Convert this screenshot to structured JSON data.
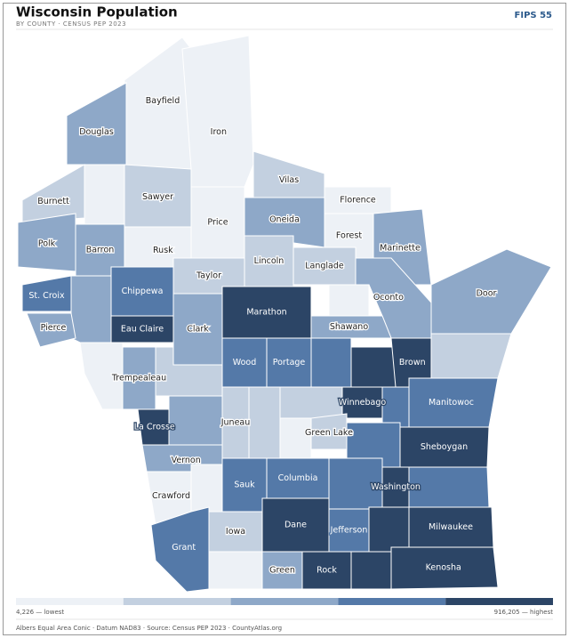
{
  "header": {
    "title": "Wisconsin Population",
    "subtitle": "BY COUNTY · CENSUS PEP 2023",
    "badge": "FIPS 55"
  },
  "map": {
    "counties": [
      {
        "name": "Bayfield",
        "color": "#edf1f6"
      },
      {
        "name": "Douglas",
        "color": "#8ea8c8"
      },
      {
        "name": "Iron",
        "color": "#edf1f6"
      },
      {
        "name": "Vilas",
        "color": "#c3d0e0"
      },
      {
        "name": "Florence",
        "color": "#edf1f6"
      },
      {
        "name": "Forest",
        "color": "#edf1f6"
      },
      {
        "name": "Marinette",
        "color": "#8ea8c8"
      },
      {
        "name": "Door",
        "color": "#8ea8c8"
      },
      {
        "name": "Burnett",
        "color": "#c3d0e0"
      },
      {
        "name": null,
        "color": "#edf1f6"
      },
      {
        "name": "Sawyer",
        "color": "#c3d0e0"
      },
      {
        "name": "Price",
        "color": "#edf1f6"
      },
      {
        "name": "Oneida",
        "color": "#8ea8c8"
      },
      {
        "name": "Polk",
        "color": "#8ea8c8"
      },
      {
        "name": "Barron",
        "color": "#8ea8c8"
      },
      {
        "name": "Rusk",
        "color": "#edf1f6"
      },
      {
        "name": "Taylor",
        "color": "#c3d0e0"
      },
      {
        "name": "Lincoln",
        "color": "#c3d0e0"
      },
      {
        "name": "Langlade",
        "color": "#c3d0e0"
      },
      {
        "name": "Oconto",
        "color": "#8ea8c8"
      },
      {
        "name": null,
        "color": "#edf1f6"
      },
      {
        "name": "St. Croix",
        "color": "#5479a8"
      },
      {
        "name": null,
        "color": "#8ea8c8"
      },
      {
        "name": "Pierce",
        "color": "#8ea8c8"
      },
      {
        "name": "Chippewa",
        "color": "#5479a8"
      },
      {
        "name": "Eau Claire",
        "color": "#2c4566"
      },
      {
        "name": "Clark",
        "color": "#8ea8c8"
      },
      {
        "name": "Marathon",
        "color": "#2c4566"
      },
      {
        "name": "Shawano",
        "color": "#8ea8c8"
      },
      {
        "name": null,
        "color": "#edf1f6"
      },
      {
        "name": "Trempealeau",
        "color": "#8ea8c8"
      },
      {
        "name": null,
        "color": "#c3d0e0"
      },
      {
        "name": "Wood",
        "color": "#5479a8"
      },
      {
        "name": "Portage",
        "color": "#5479a8"
      },
      {
        "name": null,
        "color": "#5479a8"
      },
      {
        "name": null,
        "color": "#2c4566"
      },
      {
        "name": "Brown",
        "color": "#2c4566"
      },
      {
        "name": null,
        "color": "#c3d0e0"
      },
      {
        "name": "Manitowoc",
        "color": "#5479a8"
      },
      {
        "name": null,
        "color": "#5479a8"
      },
      {
        "name": "Winnebago",
        "color": "#2c4566"
      },
      {
        "name": null,
        "color": "#c3d0e0"
      },
      {
        "name": null,
        "color": "#edf1f6"
      },
      {
        "name": "Green Lake",
        "color": "#c3d0e0"
      },
      {
        "name": null,
        "color": "#5479a8"
      },
      {
        "name": "Sheboygan",
        "color": "#2c4566"
      },
      {
        "name": null,
        "color": "#c3d0e0"
      },
      {
        "name": "Juneau",
        "color": "#c3d0e0"
      },
      {
        "name": null,
        "color": "#8ea8c8"
      },
      {
        "name": "La Crosse",
        "color": "#2c4566"
      },
      {
        "name": "Vernon",
        "color": "#8ea8c8"
      },
      {
        "name": "Crawford",
        "color": "#edf1f6"
      },
      {
        "name": null,
        "color": "#edf1f6"
      },
      {
        "name": "Sauk",
        "color": "#5479a8"
      },
      {
        "name": "Columbia",
        "color": "#5479a8"
      },
      {
        "name": null,
        "color": "#5479a8"
      },
      {
        "name": "Washington",
        "color": "#2c4566"
      },
      {
        "name": null,
        "color": "#5479a8"
      },
      {
        "name": "Grant",
        "color": "#5479a8"
      },
      {
        "name": "Iowa",
        "color": "#c3d0e0"
      },
      {
        "name": null,
        "color": "#edf1f6"
      },
      {
        "name": "Green",
        "color": "#8ea8c8"
      },
      {
        "name": "Dane",
        "color": "#2c4566"
      },
      {
        "name": "Jefferson",
        "color": "#5479a8"
      },
      {
        "name": null,
        "color": "#2c4566"
      },
      {
        "name": "Milwaukee",
        "color": "#2c4566"
      },
      {
        "name": "Rock",
        "color": "#2c4566"
      },
      {
        "name": null,
        "color": "#2c4566"
      },
      {
        "name": "Kenosha",
        "color": "#2c4566"
      }
    ]
  },
  "legend": {
    "colors": [
      "#edf1f6",
      "#c3d0e0",
      "#8ea8c8",
      "#5479a8",
      "#2c4566"
    ],
    "low_label": "4,226 — lowest",
    "high_label": "916,205 — highest"
  },
  "footer": "Albers Equal Area Conic · Datum NAD83 · Source: Census PEP 2023 · CountyAtlas.org"
}
